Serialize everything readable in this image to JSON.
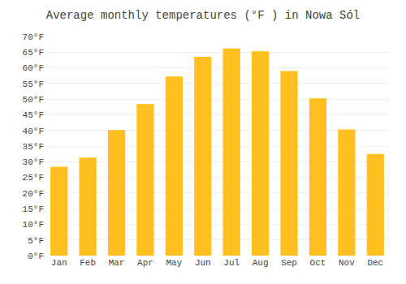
{
  "chart_data": {
    "type": "bar",
    "title": "Average monthly temperatures (°F ) in Nowa Sól",
    "categories": [
      "Jan",
      "Feb",
      "Mar",
      "Apr",
      "May",
      "Jun",
      "Jul",
      "Aug",
      "Sep",
      "Oct",
      "Nov",
      "Dec"
    ],
    "values": [
      28.4,
      31.3,
      40.1,
      48.4,
      57.2,
      63.5,
      66.2,
      65.3,
      59.0,
      50.2,
      40.3,
      32.5
    ],
    "color": "#FFC020",
    "ylim": [
      0,
      70
    ],
    "yticks": [
      {
        "value": 0,
        "label": "0°F"
      },
      {
        "value": 5,
        "label": "5°F"
      },
      {
        "value": 10,
        "label": "10°F"
      },
      {
        "value": 15,
        "label": "15°F"
      },
      {
        "value": 20,
        "label": "20°F"
      },
      {
        "value": 25,
        "label": "25°F"
      },
      {
        "value": 30,
        "label": "30°F"
      },
      {
        "value": 35,
        "label": "35°F"
      },
      {
        "value": 40,
        "label": "40°F"
      },
      {
        "value": 45,
        "label": "45°F"
      },
      {
        "value": 50,
        "label": "50°F"
      },
      {
        "value": 55,
        "label": "55°F"
      },
      {
        "value": 60,
        "label": "60°F"
      },
      {
        "value": 65,
        "label": "65°F"
      },
      {
        "value": 70,
        "label": "70°F"
      }
    ],
    "grid": true
  }
}
